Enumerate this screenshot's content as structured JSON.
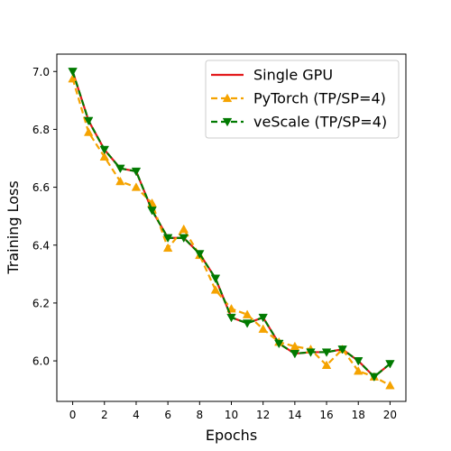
{
  "chart_data": {
    "type": "line",
    "xlabel": "Epochs",
    "ylabel": "Training Loss",
    "xlim": [
      -1,
      21
    ],
    "ylim": [
      5.86,
      7.06
    ],
    "xticks": [
      0,
      2,
      4,
      6,
      8,
      10,
      12,
      14,
      16,
      18,
      20
    ],
    "yticks": [
      6.0,
      6.2,
      6.4,
      6.6,
      6.8,
      7.0
    ],
    "ytick_labels": [
      "6.0",
      "6.2",
      "6.4",
      "6.6",
      "6.8",
      "7.0"
    ],
    "x": [
      0,
      1,
      2,
      3,
      4,
      5,
      6,
      7,
      8,
      9,
      10,
      11,
      12,
      13,
      14,
      15,
      16,
      17,
      18,
      19,
      20
    ],
    "legend_position": "top-right",
    "grid": false,
    "series": [
      {
        "name": "Single GPU",
        "color": "#e31a1c",
        "line_style": "solid",
        "marker": "none",
        "values": [
          7.0,
          6.83,
          6.73,
          6.665,
          6.655,
          6.52,
          6.425,
          6.425,
          6.37,
          6.285,
          6.15,
          6.13,
          6.15,
          6.06,
          6.025,
          6.03,
          6.03,
          6.04,
          6.0,
          5.945,
          5.99
        ]
      },
      {
        "name": "PyTorch (TP/SP=4)",
        "color": "#f5a300",
        "line_style": "dashed",
        "marker": "triangle-up",
        "values": [
          6.975,
          6.79,
          6.705,
          6.62,
          6.6,
          6.545,
          6.39,
          6.455,
          6.365,
          6.245,
          6.18,
          6.16,
          6.11,
          6.065,
          6.05,
          6.04,
          5.985,
          6.04,
          5.965,
          5.945,
          5.915
        ]
      },
      {
        "name": "veScale (TP/SP=4)",
        "color": "#007a00",
        "line_style": "dashed",
        "marker": "triangle-down",
        "values": [
          7.0,
          6.83,
          6.73,
          6.665,
          6.655,
          6.52,
          6.425,
          6.425,
          6.37,
          6.285,
          6.15,
          6.13,
          6.15,
          6.06,
          6.025,
          6.03,
          6.03,
          6.04,
          6.0,
          5.945,
          5.99
        ]
      }
    ]
  }
}
